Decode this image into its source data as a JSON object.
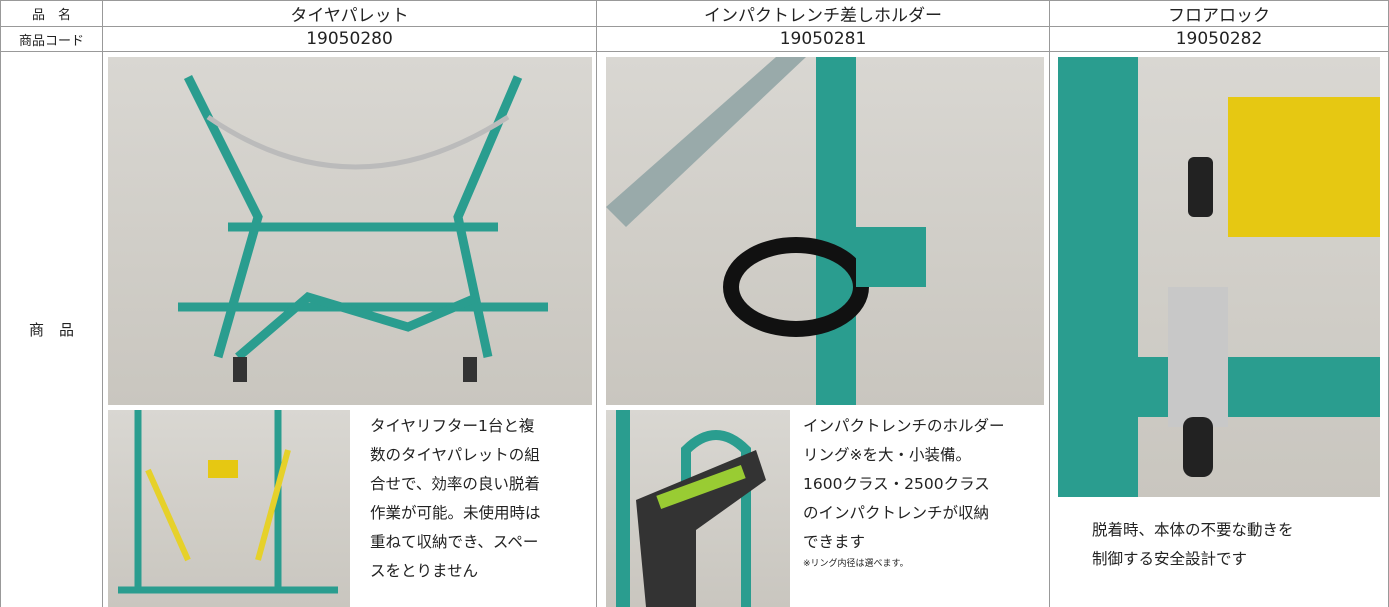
{
  "header": {
    "name_label": "品　名",
    "code_label": "商品コード",
    "product_label": "商　品"
  },
  "products": [
    {
      "name": "タイヤパレット",
      "code": "19050280",
      "description": [
        "タイヤリフター1台と複",
        "数のタイヤパレットの組",
        "合せで、効率の良い脱着",
        "作業が可能。未使用時は",
        "重ねて収納でき、スペー",
        "スをとりません"
      ]
    },
    {
      "name": "インパクトレンチ差しホルダー",
      "code": "19050281",
      "description": [
        "インパクトレンチのホルダー",
        "リング※を大・小装備。",
        "1600クラス・2500クラス",
        "のインパクトレンチが収納",
        "できます"
      ],
      "note": "※リング内径は選べます。"
    },
    {
      "name": "フロアロック",
      "code": "19050282",
      "description": [
        "脱着時、本体の不要な動きを",
        "制御する安全設計です"
      ]
    }
  ]
}
